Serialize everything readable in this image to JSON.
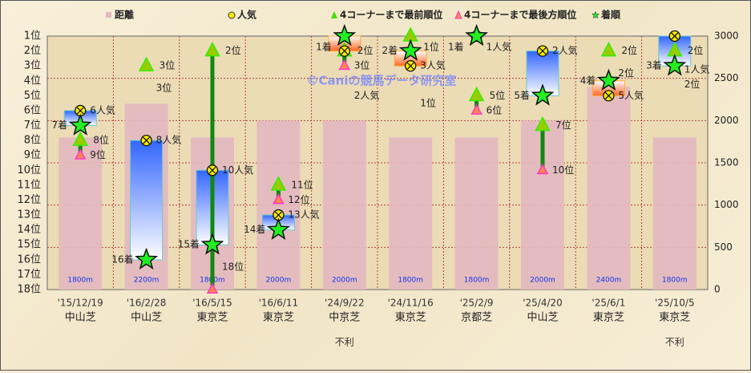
{
  "chart_data": {
    "type": "bar+line",
    "legend": {
      "placement": "top",
      "entries": [
        {
          "label": "距離",
          "color": "#e3b8c0",
          "marker": "square"
        },
        {
          "label": "人気",
          "color": "#ffee00",
          "marker": "circle-x"
        },
        {
          "label": "4コーナーまで最前順位",
          "color": "#44dd00",
          "marker": "triangle"
        },
        {
          "label": "4コーナーまで最後方順位",
          "color": "#ff8844",
          "marker": "triangle-pink"
        },
        {
          "label": "着順",
          "color": "#22ee22",
          "marker": "star"
        }
      ]
    },
    "left_axis": {
      "range": [
        1,
        18
      ],
      "inverted": true,
      "ticks": [
        "1位",
        "2位",
        "3位",
        "4位",
        "5位",
        "6位",
        "7位",
        "8位",
        "9位",
        "10位",
        "11位",
        "12位",
        "13位",
        "14位",
        "15位",
        "16位",
        "17位",
        "18位"
      ]
    },
    "right_axis": {
      "range": [
        0,
        3000
      ],
      "ticks": [
        "0",
        "500",
        "1000",
        "1500",
        "2000",
        "2500",
        "3000"
      ]
    },
    "grid": true,
    "watermark": "©Caniの競馬データ研究室",
    "races": [
      {
        "date": "'15/12/19",
        "course": "中山芝",
        "distance": 1800,
        "distance_label": "1800m",
        "popularity": 6,
        "front": 8,
        "rear": 9,
        "finish": 7,
        "note": ""
      },
      {
        "date": "'16/2/28",
        "course": "中山芝",
        "distance": 2200,
        "distance_label": "2200m",
        "popularity": 8,
        "front": 3,
        "rear": 3,
        "finish": 16,
        "note": ""
      },
      {
        "date": "'16/5/15",
        "course": "東京芝",
        "distance": 1800,
        "distance_label": "1800m",
        "popularity": 10,
        "front": 2,
        "rear": 18,
        "finish": 15,
        "note": ""
      },
      {
        "date": "'16/6/11",
        "course": "東京芝",
        "distance": 2000,
        "distance_label": "2000m",
        "popularity": 13,
        "front": 11,
        "rear": 12,
        "finish": 14,
        "note": ""
      },
      {
        "date": "'24/9/22",
        "course": "中京芝",
        "distance": 2000,
        "distance_label": "2000m",
        "popularity": 2,
        "front": 2,
        "rear": 3,
        "finish": 1,
        "note": "不利"
      },
      {
        "date": "'24/11/16",
        "course": "東京芝",
        "distance": 1800,
        "distance_label": "1800m",
        "popularity": 3,
        "front": 1,
        "rear": 1,
        "finish": 2,
        "note": ""
      },
      {
        "date": "'25/2/9",
        "course": "京都芝",
        "distance": 1800,
        "distance_label": "1800m",
        "popularity": 1,
        "front": 5,
        "rear": 6,
        "finish": 1,
        "note": ""
      },
      {
        "date": "'25/4/20",
        "course": "中山芝",
        "distance": 2000,
        "distance_label": "2000m",
        "popularity": 2,
        "front": 7,
        "rear": 10,
        "finish": 5,
        "note": ""
      },
      {
        "date": "'25/6/1",
        "course": "東京芝",
        "distance": 2400,
        "distance_label": "2400m",
        "popularity": 5,
        "front": 2,
        "rear": 2,
        "finish": 4,
        "note": ""
      },
      {
        "date": "'25/10/5",
        "course": "東京芝",
        "distance": 1800,
        "distance_label": "1800m",
        "popularity": 1,
        "front": 2,
        "rear": 2,
        "finish": 3,
        "note": "不利"
      }
    ],
    "suffix": {
      "position": "位",
      "popularity": "人気",
      "finish": "着"
    }
  }
}
